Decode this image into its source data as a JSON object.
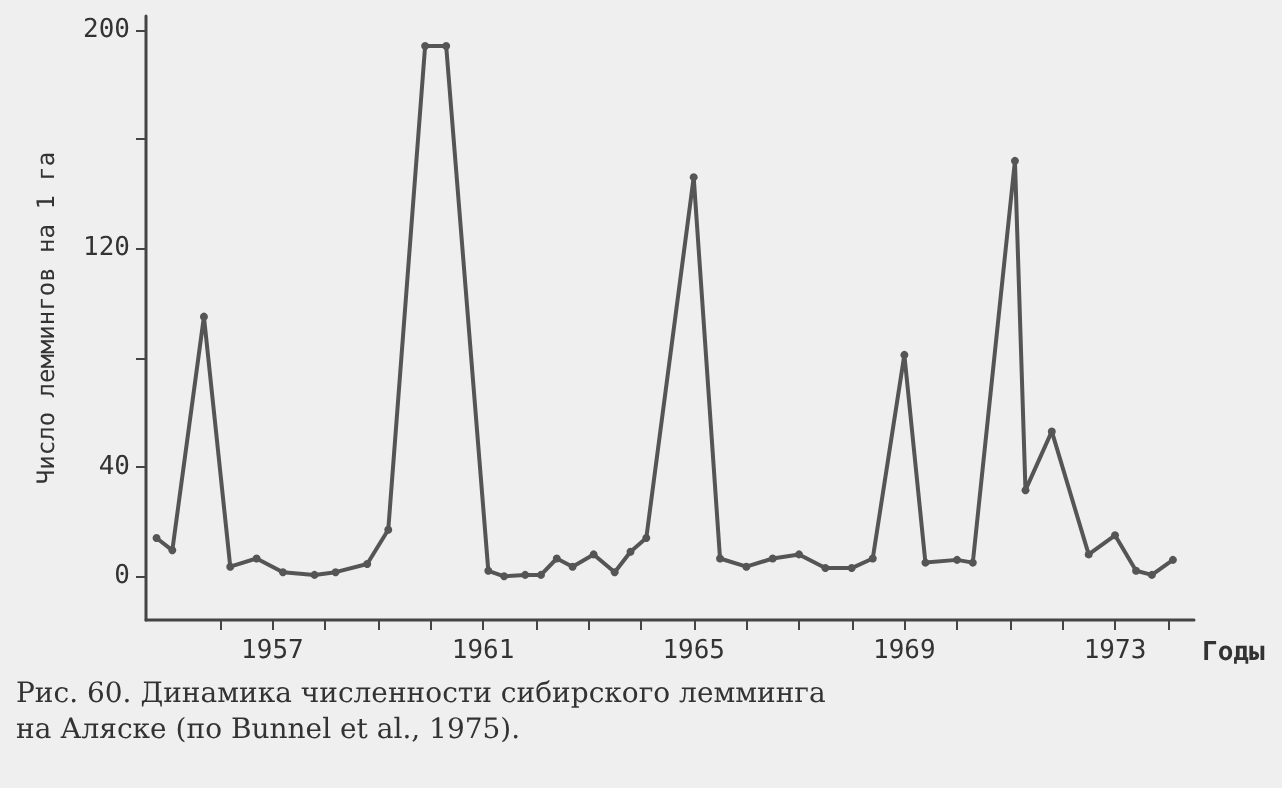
{
  "chart_data": {
    "type": "line",
    "xlabel": "Годы",
    "ylabel": "Число леммингов на 1 га",
    "annotations": [
      "Рис. 60. Динамика численности сибирского лемминга на Аляске (по Bunnel et al., 1975)."
    ],
    "x": [
      1954.8,
      1955.1,
      1955.7,
      1956.2,
      1956.7,
      1957.2,
      1957.8,
      1958.2,
      1958.8,
      1959.2,
      1959.9,
      1960.3,
      1961.1,
      1961.4,
      1961.8,
      1962.1,
      1962.4,
      1962.7,
      1963.1,
      1963.5,
      1963.8,
      1964.1,
      1965.0,
      1965.5,
      1966.0,
      1966.5,
      1967.0,
      1967.5,
      1968.0,
      1968.4,
      1969.0,
      1969.4,
      1970.0,
      1970.3,
      1971.1,
      1971.3,
      1971.8,
      1972.5,
      1973.0,
      1973.4,
      1973.7,
      1974.1
    ],
    "series": [
      {
        "color": "#555555",
        "values": [
          14,
          9.5,
          95,
          3.5,
          6.5,
          1.5,
          0.5,
          1.5,
          4.5,
          17,
          194,
          194,
          2,
          0,
          0.5,
          0.5,
          6.5,
          3.5,
          8,
          1.5,
          9,
          14,
          146,
          6.5,
          3.5,
          6.5,
          8,
          3,
          3,
          6.5,
          81,
          5,
          6,
          5,
          152,
          31.5,
          53,
          8,
          15,
          2,
          0.5,
          6
        ]
      }
    ],
    "xlim": [
      1954.6,
      1974.5
    ],
    "xticks": [
      {
        "value": 1956,
        "label": null
      },
      {
        "value": 1957,
        "label": "1957"
      },
      {
        "value": 1958,
        "label": null
      },
      {
        "value": 1959,
        "label": null
      },
      {
        "value": 1960,
        "label": null
      },
      {
        "value": 1961,
        "label": "1961"
      },
      {
        "value": 1962,
        "label": null
      },
      {
        "value": 1963,
        "label": null
      },
      {
        "value": 1964,
        "label": null
      },
      {
        "value": 1965,
        "label": "1965"
      },
      {
        "value": 1966,
        "label": null
      },
      {
        "value": 1967,
        "label": null
      },
      {
        "value": 1968,
        "label": null
      },
      {
        "value": 1969,
        "label": "1969"
      },
      {
        "value": 1970,
        "label": null
      },
      {
        "value": 1971,
        "label": null
      },
      {
        "value": 1972,
        "label": null
      },
      {
        "value": 1973,
        "label": "1973"
      },
      {
        "value": 1974,
        "label": null
      }
    ],
    "ylim": [
      -16,
      205
    ],
    "yticks": [
      0,
      40,
      {
        "value": 80,
        "label": null
      },
      120,
      {
        "value": 160,
        "label": null
      },
      200
    ],
    "marker": "circle",
    "line_style": "solid"
  }
}
